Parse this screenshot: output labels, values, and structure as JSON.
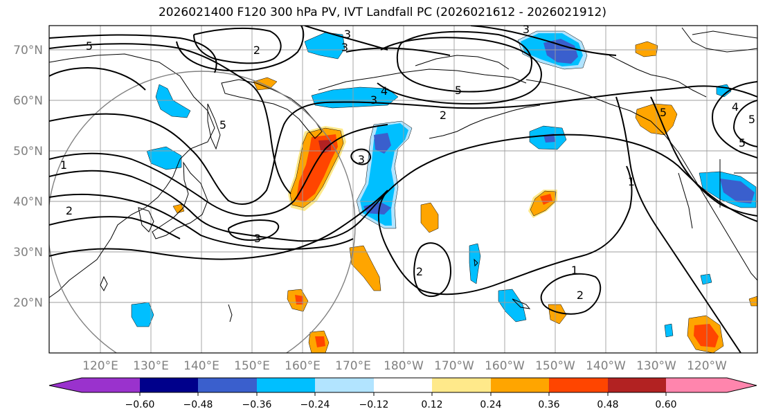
{
  "title": "2026021400 F120 300 hPa PV, IVT Landfall PC (2026021612 - 2026021912)",
  "lat_labels": [
    "70°N",
    "60°N",
    "50°N",
    "40°N",
    "30°N",
    "20°N"
  ],
  "lon_labels": [
    "120°E",
    "130°E",
    "140°E",
    "150°E",
    "160°E",
    "170°E",
    "180°W",
    "170°W",
    "160°W",
    "150°W",
    "140°W",
    "130°W",
    "120°W"
  ],
  "contour_labels": [
    "5",
    "1",
    "2",
    "2",
    "3",
    "3",
    "5",
    "4",
    "3",
    "5",
    "2",
    "3",
    "3",
    "1",
    "2",
    "1",
    "2",
    "3",
    "5",
    "5",
    "5",
    "4"
  ],
  "colorbar": {
    "tick_labels": [
      "−0.60",
      "−0.48",
      "−0.36",
      "−0.24",
      "−0.12",
      "0.12",
      "0.24",
      "0.36",
      "0.48",
      "0.60"
    ],
    "colors": [
      "#9a32cd",
      "#00008b",
      "#3a5fcd",
      "#00bfff",
      "#b2e4ff",
      "#ffffff",
      "#ffe98a",
      "#ffa500",
      "#ff4500",
      "#b22222",
      "#ff85ad"
    ]
  }
}
